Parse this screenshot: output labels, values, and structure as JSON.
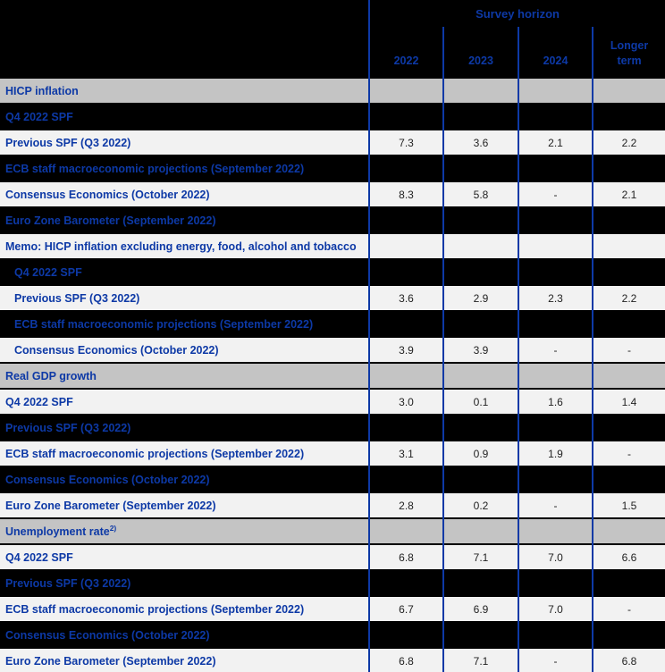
{
  "table": {
    "header": {
      "group_label": "Survey horizon",
      "columns": [
        "2022",
        "2023",
        "2024",
        "Longer term"
      ]
    },
    "rows": [
      {
        "label": "HICP inflation",
        "style": "section",
        "indent": false,
        "values": [
          "",
          "",
          "",
          ""
        ]
      },
      {
        "label": "Q4 2022 SPF",
        "style": "dark",
        "indent": false,
        "values": [
          "",
          "",
          "",
          ""
        ]
      },
      {
        "label": "Previous SPF (Q3 2022)",
        "style": "light",
        "indent": false,
        "values": [
          "7.3",
          "3.6",
          "2.1",
          "2.2"
        ]
      },
      {
        "label": "ECB staff macroeconomic projections (September 2022)",
        "style": "dark",
        "indent": false,
        "values": [
          "",
          "",
          "",
          ""
        ]
      },
      {
        "label": "Consensus Economics (October 2022)",
        "style": "light",
        "indent": false,
        "values": [
          "8.3",
          "5.8",
          "-",
          "2.1"
        ]
      },
      {
        "label": "Euro Zone Barometer (September 2022)",
        "style": "dark",
        "indent": false,
        "values": [
          "",
          "",
          "",
          ""
        ]
      },
      {
        "label": "Memo: HICP inflation excluding energy, food, alcohol and tobacco",
        "style": "light",
        "indent": false,
        "values": [
          "",
          "",
          "",
          ""
        ]
      },
      {
        "label": "Q4 2022 SPF",
        "style": "dark",
        "indent": true,
        "values": [
          "",
          "",
          "",
          ""
        ]
      },
      {
        "label": "Previous SPF (Q3 2022)",
        "style": "light",
        "indent": true,
        "values": [
          "3.6",
          "2.9",
          "2.3",
          "2.2"
        ]
      },
      {
        "label": "ECB staff macroeconomic projections (September 2022)",
        "style": "dark",
        "indent": true,
        "values": [
          "",
          "",
          "",
          ""
        ]
      },
      {
        "label": "Consensus Economics (October 2022)",
        "style": "light",
        "indent": true,
        "values": [
          "3.9",
          "3.9",
          "-",
          "-"
        ]
      },
      {
        "label": "Real GDP growth",
        "style": "section",
        "indent": false,
        "values": [
          "",
          "",
          "",
          ""
        ]
      },
      {
        "label": "Q4 2022 SPF",
        "style": "light",
        "indent": false,
        "values": [
          "3.0",
          "0.1",
          "1.6",
          "1.4"
        ]
      },
      {
        "label": "Previous SPF (Q3 2022)",
        "style": "dark",
        "indent": false,
        "values": [
          "",
          "",
          "",
          ""
        ]
      },
      {
        "label": "ECB staff macroeconomic projections (September 2022)",
        "style": "light",
        "indent": false,
        "values": [
          "3.1",
          "0.9",
          "1.9",
          "-"
        ]
      },
      {
        "label": "Consensus Economics (October 2022)",
        "style": "dark",
        "indent": false,
        "values": [
          "",
          "",
          "",
          ""
        ]
      },
      {
        "label": "Euro Zone Barometer (September 2022)",
        "style": "light",
        "indent": false,
        "values": [
          "2.8",
          "0.2",
          "-",
          "1.5"
        ]
      },
      {
        "label": "Unemployment rate",
        "sup": "2)",
        "style": "section",
        "indent": false,
        "values": [
          "",
          "",
          "",
          ""
        ]
      },
      {
        "label": "Q4 2022 SPF",
        "style": "light",
        "indent": false,
        "values": [
          "6.8",
          "7.1",
          "7.0",
          "6.6"
        ]
      },
      {
        "label": "Previous SPF (Q3 2022)",
        "style": "dark",
        "indent": false,
        "values": [
          "",
          "",
          "",
          ""
        ]
      },
      {
        "label": "ECB staff macroeconomic projections (September 2022)",
        "style": "light",
        "indent": false,
        "values": [
          "6.7",
          "6.9",
          "7.0",
          "-"
        ]
      },
      {
        "label": "Consensus Economics (October 2022)",
        "style": "dark",
        "indent": false,
        "values": [
          "",
          "",
          "",
          ""
        ]
      },
      {
        "label": "Euro Zone Barometer (September 2022)",
        "style": "light",
        "indent": false,
        "values": [
          "6.8",
          "7.1",
          "-",
          "6.8"
        ]
      }
    ]
  },
  "colors": {
    "accent_blue": "#0d39a6",
    "section_header_bg": "#c4c4c4",
    "light_row_bg": "#f2f2f2",
    "dark_row_bg": "#000000",
    "value_text": "#222222"
  }
}
